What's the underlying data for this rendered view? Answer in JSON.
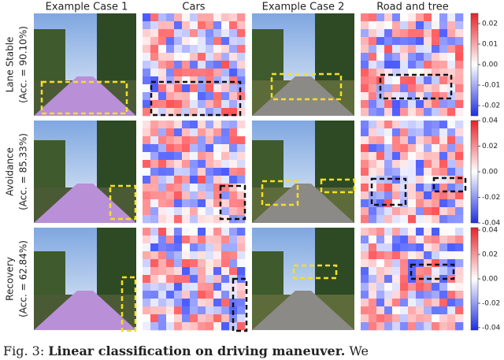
{
  "columns": [
    "Example Case 1",
    "Cars",
    "Example Case 2",
    "Road and tree"
  ],
  "rows": [
    {
      "label": "Lane Stable",
      "accuracy": "(Acc. = 90.10%)",
      "colorbar": {
        "ylim": [
          -0.025,
          0.025
        ],
        "yticks": [
          0.02,
          0.01,
          {
            "value": 0,
            "label": "0.00"
          },
          -0.01,
          -0.02
        ]
      }
    },
    {
      "label": "Avoidance",
      "accuracy": "(Acc. = 85.33%)",
      "colorbar": {
        "ylim": [
          -0.04,
          0.04
        ],
        "yticks": [
          0.04,
          0.02,
          {
            "value": 0,
            "label": "0.00"
          },
          -0.02,
          -0.04
        ]
      }
    },
    {
      "label": "Recovery",
      "accuracy": "(Acc. = 62.84%)",
      "colorbar": {
        "ylim": [
          -0.042,
          0.042
        ],
        "yticks": [
          0.04,
          0.02,
          {
            "value": 0,
            "label": "0.00"
          },
          -0.02,
          -0.04
        ]
      }
    }
  ],
  "caption": {
    "label": "Fig. 3:",
    "title": "Linear classification on driving maneuver.",
    "text": "We"
  }
}
